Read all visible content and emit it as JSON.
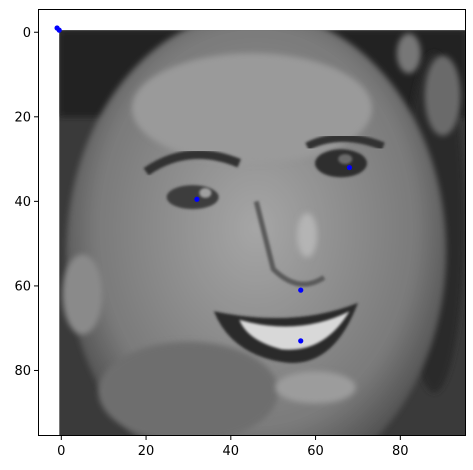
{
  "chart_data": {
    "type": "scatter",
    "image_content": "grayscale face image",
    "x_ticks": [
      "0",
      "20",
      "40",
      "60",
      "80"
    ],
    "y_ticks": [
      "0",
      "20",
      "40",
      "60",
      "80"
    ],
    "xlim": [
      -5.5,
      95.5
    ],
    "ylim": [
      95.5,
      -5.5
    ],
    "image_extent": [
      -0.5,
      95.5,
      95.5,
      -0.5
    ],
    "y_inverted": true,
    "grid": false,
    "marker_color": "#0000ff",
    "points": [
      {
        "x": 68,
        "y": 32
      },
      {
        "x": 32,
        "y": 39.5
      },
      {
        "x": 56.5,
        "y": 61
      },
      {
        "x": 56.5,
        "y": 73
      },
      {
        "x": -1,
        "y": -1
      },
      {
        "x": -0.5,
        "y": -0.5
      }
    ]
  }
}
